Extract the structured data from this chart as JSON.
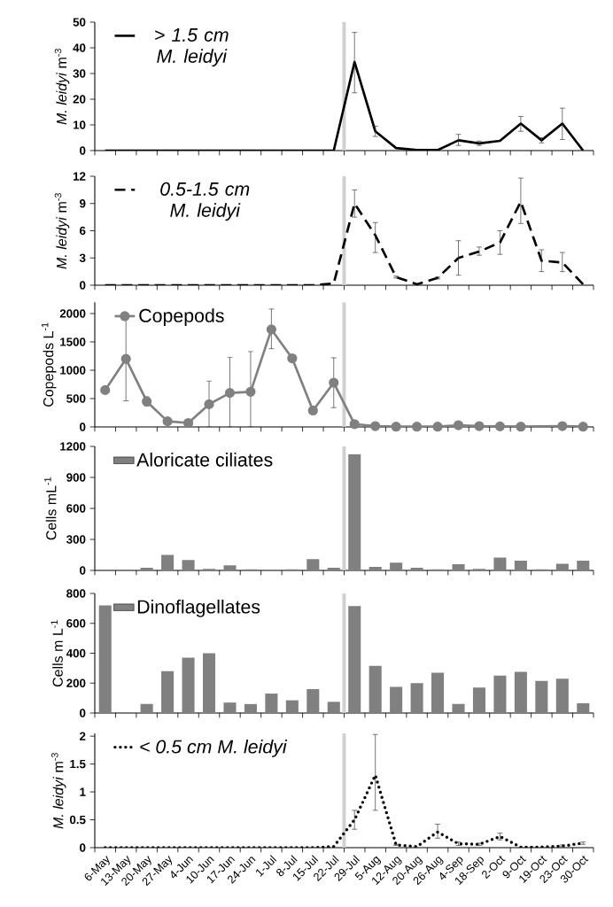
{
  "chart_data": [
    {
      "type": "line",
      "categories": [
        null,
        null,
        null,
        null,
        null,
        null,
        null,
        null,
        null,
        null,
        null,
        null,
        null,
        null,
        null,
        null,
        null,
        null,
        null,
        null,
        null,
        null,
        null,
        null
      ],
      "ylabel": "*M. leidyi* m$^{-3}$",
      "ylim": [
        0,
        50
      ],
      "yticks": [
        0,
        10,
        20,
        30,
        40,
        50
      ],
      "legend": "top left",
      "tick_labels": "y",
      "line_style": "solid",
      "series": [
        {
          "name": "> 1.5 cm M. leidyi",
          "color": "#000000",
          "values": [
            0,
            0,
            0,
            0,
            0,
            0,
            0,
            0,
            0,
            0,
            0,
            0,
            34.5,
            7.5,
            1,
            0.2,
            0.2,
            4,
            2.8,
            3.8,
            10.5,
            4,
            10.5,
            0
          ],
          "errors": [
            null,
            null,
            null,
            null,
            null,
            null,
            null,
            null,
            null,
            null,
            null,
            null,
            [
              22.5,
              46
            ],
            [
              5.5,
              9.5
            ],
            null,
            null,
            null,
            [
              2,
              6.3
            ],
            [
              2,
              3.7
            ],
            null,
            [
              7.5,
              13.3
            ],
            [
              3,
              5
            ],
            [
              4.3,
              16.5
            ],
            null
          ]
        }
      ]
    },
    {
      "type": "line",
      "categories": [
        null,
        null,
        null,
        null,
        null,
        null,
        null,
        null,
        null,
        null,
        null,
        null,
        null,
        null,
        null,
        null,
        null,
        null,
        null,
        null,
        null,
        null,
        null,
        null
      ],
      "ylabel": "*M. leidyi* m$^{-3}$",
      "ylim": [
        0,
        12
      ],
      "yticks": [
        0,
        3,
        6,
        9,
        12
      ],
      "legend": "top left",
      "tick_labels": "y",
      "line_style": "dashed",
      "series": [
        {
          "name": "0.5-1.5 cm M. leidyi",
          "color": "#000000",
          "values": [
            0,
            0,
            0,
            0,
            0,
            0,
            0,
            0,
            0,
            0,
            0,
            0.2,
            9,
            5.5,
            0.9,
            0.1,
            0.8,
            3,
            3.7,
            4.7,
            9.2,
            2.7,
            2.5,
            0.1
          ],
          "errors": [
            null,
            null,
            null,
            null,
            null,
            null,
            null,
            null,
            null,
            null,
            null,
            null,
            [
              7.5,
              10.5
            ],
            [
              3.6,
              6.9
            ],
            [
              0.8,
              1.0
            ],
            null,
            [
              0.7,
              0.9
            ],
            [
              1.1,
              4.9
            ],
            [
              3.3,
              4.2
            ],
            [
              3.4,
              6
            ],
            [
              6.8,
              11.8
            ],
            [
              1.5,
              3.9
            ],
            [
              1.5,
              3.6
            ],
            null
          ]
        }
      ]
    },
    {
      "type": "line",
      "categories": [
        null,
        null,
        null,
        null,
        null,
        null,
        null,
        null,
        null,
        null,
        null,
        null,
        null,
        null,
        null,
        null,
        null,
        null,
        null,
        null,
        null,
        null,
        null,
        null
      ],
      "ylabel": "Copepods L$^{-1}$",
      "ylim": [
        0,
        2200
      ],
      "yticks": [
        0,
        500,
        1000,
        1500,
        2000
      ],
      "legend": "top left",
      "tick_labels": "y",
      "line_style": "solid",
      "marker": "circle",
      "series": [
        {
          "name": "Copepods",
          "color": "#808080",
          "values": [
            650,
            1200,
            450,
            100,
            70,
            400,
            600,
            620,
            1720,
            1210,
            290,
            780,
            50,
            15,
            5,
            5,
            5,
            30,
            15,
            10,
            5,
            null,
            15,
            5
          ],
          "errors": [
            null,
            [
              460,
              1940
            ],
            [
              370,
              530
            ],
            null,
            null,
            [
              0,
              810
            ],
            [
              0,
              1230
            ],
            [
              0,
              1330
            ],
            [
              1380,
              2080
            ],
            null,
            null,
            [
              340,
              1220
            ],
            null,
            null,
            null,
            null,
            null,
            null,
            null,
            null,
            null,
            null,
            null,
            null
          ]
        }
      ]
    },
    {
      "type": "bar",
      "categories": [
        null,
        null,
        null,
        null,
        null,
        null,
        null,
        null,
        null,
        null,
        null,
        null,
        null,
        null,
        null,
        null,
        null,
        null,
        null,
        null,
        null,
        null,
        null,
        null
      ],
      "ylabel": "Cells mL$^{-1}$",
      "ylim": [
        0,
        1200
      ],
      "yticks": [
        0,
        300,
        600,
        900,
        1200
      ],
      "legend": "top left",
      "tick_labels": "y",
      "series": [
        {
          "name": "Aloricate ciliates",
          "color": "#808080",
          "values": [
            0,
            0,
            25,
            150,
            100,
            15,
            50,
            10,
            5,
            10,
            110,
            25,
            1125,
            35,
            75,
            25,
            10,
            60,
            15,
            125,
            95,
            10,
            65,
            95
          ]
        }
      ]
    },
    {
      "type": "bar",
      "categories": [
        null,
        null,
        null,
        null,
        null,
        null,
        null,
        null,
        null,
        null,
        null,
        null,
        null,
        null,
        null,
        null,
        null,
        null,
        null,
        null,
        null,
        null,
        null,
        null
      ],
      "ylabel": "Cells m L$^{-1}$",
      "ylim": [
        0,
        800
      ],
      "yticks": [
        0,
        200,
        400,
        600,
        800
      ],
      "legend": "top left",
      "tick_labels": "y",
      "series": [
        {
          "name": "Dinoflagellates",
          "color": "#808080",
          "values": [
            720,
            5,
            60,
            280,
            370,
            400,
            70,
            60,
            130,
            85,
            160,
            75,
            715,
            315,
            175,
            200,
            270,
            60,
            170,
            250,
            275,
            215,
            230,
            65
          ]
        }
      ]
    },
    {
      "type": "line",
      "categories": [
        "6-May",
        "13-May",
        "20-May",
        "27-May",
        "4-Jun",
        "10-Jun",
        "17-Jun",
        "24-Jun",
        "1-Jul",
        "8-Jul",
        "15-Jul",
        "22-Jul",
        "29-Jul",
        "5-Aug",
        "12-Aug",
        "20-Aug",
        "26-Aug",
        "4-Sep",
        "18-Sep",
        "2-Oct",
        "9-Oct",
        "19-Oct",
        "23-Oct",
        "30-Oct"
      ],
      "ylabel": "*M. leidyi* m$^{-3}$",
      "ylim": [
        0,
        2.05
      ],
      "yticks": [
        0,
        0.5,
        1,
        1.5,
        2
      ],
      "legend": "top left",
      "line_style": "dotted",
      "series": [
        {
          "name": "< 0.5 cm M. leidyi",
          "color": "#000000",
          "values": [
            0,
            0,
            0,
            0,
            0,
            0,
            0,
            0,
            0,
            0,
            0,
            0.02,
            0.5,
            1.3,
            0.05,
            0.02,
            0.28,
            0.07,
            0.06,
            0.2,
            0.01,
            0.01,
            0.03,
            0.08
          ],
          "errors": [
            null,
            null,
            null,
            null,
            null,
            null,
            null,
            null,
            null,
            null,
            null,
            null,
            [
              0.33,
              0.67
            ],
            [
              0.67,
              2.03
            ],
            [
              0.04,
              0.06
            ],
            null,
            [
              0.17,
              0.42
            ],
            [
              0.04,
              0.1
            ],
            [
              0.04,
              0.08
            ],
            [
              0.14,
              0.26
            ],
            null,
            null,
            [
              0.02,
              0.05
            ],
            [
              0.06,
              0.1
            ]
          ]
        }
      ]
    }
  ]
}
